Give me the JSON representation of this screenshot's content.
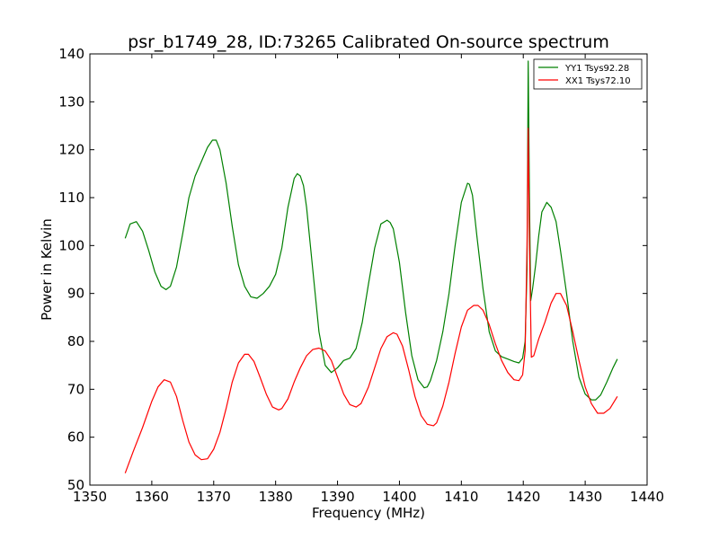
{
  "chart_data": {
    "type": "line",
    "title": "psr_b1749_28, ID:73265 Calibrated On-source spectrum",
    "xlabel": "Frequency (MHz)",
    "ylabel": "Power in Kelvin",
    "xlim": [
      1350,
      1440
    ],
    "ylim": [
      50,
      140
    ],
    "xticks": [
      1350,
      1360,
      1370,
      1380,
      1390,
      1400,
      1410,
      1420,
      1430,
      1440
    ],
    "yticks": [
      50,
      60,
      70,
      80,
      90,
      100,
      110,
      120,
      130,
      140
    ],
    "xtick_labels": [
      "1350",
      "1360",
      "1370",
      "1380",
      "1390",
      "1400",
      "1410",
      "1420",
      "1430",
      "1440"
    ],
    "ytick_labels": [
      "50",
      "60",
      "70",
      "80",
      "90",
      "100",
      "110",
      "120",
      "130",
      "140"
    ],
    "grid": false,
    "legend_position": "top-right",
    "series": [
      {
        "name": "YY1 Tsys92.28",
        "color": "#008000",
        "x": [
          1355.7,
          1356.5,
          1357.5,
          1358.5,
          1359.5,
          1360.5,
          1361.5,
          1362.3,
          1363.0,
          1364.0,
          1365.0,
          1366.0,
          1367.0,
          1368.0,
          1369.0,
          1369.8,
          1370.4,
          1371.0,
          1372.0,
          1373.0,
          1374.0,
          1375.0,
          1376.0,
          1377.0,
          1378.0,
          1379.0,
          1380.0,
          1381.0,
          1382.0,
          1383.0,
          1383.5,
          1384.0,
          1384.5,
          1385.0,
          1386.0,
          1387.0,
          1388.0,
          1389.0,
          1390.0,
          1391.0,
          1392.0,
          1393.0,
          1394.0,
          1395.0,
          1396.0,
          1397.0,
          1398.0,
          1398.5,
          1399.0,
          1400.0,
          1401.0,
          1402.0,
          1403.0,
          1404.0,
          1404.5,
          1405.0,
          1406.0,
          1407.0,
          1408.0,
          1409.0,
          1410.0,
          1411.0,
          1411.3,
          1411.8,
          1412.5,
          1413.5,
          1414.5,
          1415.5,
          1416.5,
          1417.5,
          1418.5,
          1419.3,
          1419.9,
          1420.3,
          1420.6,
          1420.8,
          1421.0,
          1421.2,
          1421.5,
          1422.0,
          1422.5,
          1423.0,
          1423.8,
          1424.5,
          1425.3,
          1426.0,
          1427.0,
          1428.0,
          1429.0,
          1430.0,
          1431.0,
          1431.7,
          1432.5,
          1433.5,
          1434.5,
          1435.2
        ],
        "y": [
          101.5,
          104.5,
          105.0,
          103.0,
          99.0,
          94.5,
          91.5,
          90.8,
          91.5,
          95.5,
          102.5,
          110.0,
          114.5,
          117.5,
          120.5,
          122.0,
          122.0,
          120.0,
          113.0,
          104.0,
          96.0,
          91.5,
          89.3,
          89.0,
          90.0,
          91.5,
          94.0,
          99.5,
          108.0,
          114.0,
          115.0,
          114.5,
          112.5,
          108.0,
          95.0,
          82.0,
          75.0,
          73.5,
          74.5,
          76.0,
          76.5,
          78.5,
          84.0,
          92.0,
          99.5,
          104.5,
          105.3,
          104.8,
          103.5,
          96.5,
          86.0,
          77.0,
          72.0,
          70.3,
          70.5,
          71.8,
          76.0,
          82.0,
          90.0,
          100.0,
          109.0,
          113.0,
          112.8,
          110.5,
          102.0,
          91.0,
          82.0,
          78.0,
          76.8,
          76.3,
          75.8,
          75.5,
          76.5,
          80.0,
          95.0,
          138.5,
          110.0,
          88.5,
          91.0,
          96.0,
          102.0,
          107.0,
          109.0,
          108.0,
          105.0,
          99.0,
          90.0,
          80.0,
          72.5,
          69.0,
          67.8,
          67.8,
          68.8,
          71.5,
          74.5,
          76.3
        ]
      },
      {
        "name": "XX1 Tsys72.10",
        "color": "#ff0000",
        "x": [
          1355.7,
          1357.0,
          1358.5,
          1360.0,
          1361.0,
          1362.0,
          1363.0,
          1364.0,
          1365.0,
          1366.0,
          1367.0,
          1368.0,
          1369.0,
          1370.0,
          1371.0,
          1372.0,
          1373.0,
          1374.0,
          1375.0,
          1375.6,
          1376.5,
          1377.5,
          1378.5,
          1379.5,
          1380.5,
          1381.0,
          1382.0,
          1383.0,
          1384.0,
          1385.0,
          1386.0,
          1387.0,
          1388.0,
          1389.0,
          1390.0,
          1391.0,
          1392.0,
          1393.0,
          1393.8,
          1395.0,
          1396.0,
          1397.0,
          1398.0,
          1399.0,
          1399.6,
          1400.5,
          1401.5,
          1402.5,
          1403.5,
          1404.5,
          1405.5,
          1406.0,
          1407.0,
          1408.0,
          1409.0,
          1410.0,
          1411.0,
          1412.0,
          1412.7,
          1413.5,
          1414.5,
          1415.5,
          1416.5,
          1417.5,
          1418.5,
          1419.3,
          1419.9,
          1420.3,
          1420.6,
          1420.8,
          1421.0,
          1421.3,
          1421.7,
          1422.5,
          1423.5,
          1424.5,
          1425.3,
          1426.0,
          1427.0,
          1428.0,
          1429.0,
          1430.0,
          1431.0,
          1432.0,
          1433.0,
          1434.0,
          1435.2
        ],
        "y": [
          52.5,
          57.0,
          62.0,
          67.5,
          70.5,
          72.0,
          71.5,
          68.5,
          63.5,
          59.0,
          56.3,
          55.3,
          55.5,
          57.5,
          61.0,
          66.0,
          71.5,
          75.5,
          77.3,
          77.3,
          75.8,
          72.5,
          69.0,
          66.3,
          65.7,
          66.0,
          68.0,
          71.5,
          74.5,
          77.0,
          78.3,
          78.6,
          78.0,
          76.0,
          72.5,
          69.0,
          66.8,
          66.3,
          67.0,
          70.5,
          74.5,
          78.5,
          81.0,
          81.8,
          81.5,
          79.0,
          74.0,
          68.5,
          64.5,
          62.7,
          62.4,
          63.0,
          66.5,
          71.5,
          77.5,
          83.0,
          86.5,
          87.5,
          87.5,
          86.5,
          83.5,
          79.5,
          76.0,
          73.5,
          72.0,
          71.8,
          73.0,
          78.0,
          100.0,
          124.5,
          100.0,
          76.7,
          77.0,
          80.5,
          84.0,
          88.0,
          90.0,
          90.0,
          87.5,
          82.0,
          76.0,
          70.5,
          67.0,
          65.0,
          65.0,
          66.0,
          68.5
        ]
      }
    ]
  }
}
